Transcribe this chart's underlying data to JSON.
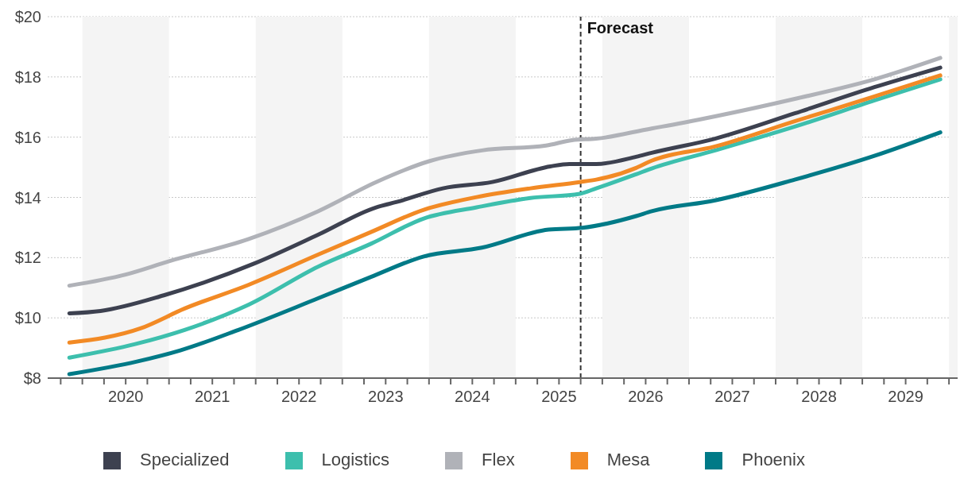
{
  "chart_data": {
    "type": "line",
    "xlim": [
      2019.6,
      2030.1
    ],
    "xticks": [
      {
        "value": 2019.75,
        "label": null
      },
      {
        "value": 2020,
        "label": null
      },
      {
        "value": 2020.25,
        "label": null
      },
      {
        "value": 2020.5,
        "label": "2020"
      },
      {
        "value": 2020.75,
        "label": null
      },
      {
        "value": 2021,
        "label": null
      },
      {
        "value": 2021.25,
        "label": null
      },
      {
        "value": 2021.5,
        "label": "2021"
      },
      {
        "value": 2021.75,
        "label": null
      },
      {
        "value": 2022,
        "label": null
      },
      {
        "value": 2022.25,
        "label": null
      },
      {
        "value": 2022.5,
        "label": "2022"
      },
      {
        "value": 2022.75,
        "label": null
      },
      {
        "value": 2023,
        "label": null
      },
      {
        "value": 2023.25,
        "label": null
      },
      {
        "value": 2023.5,
        "label": "2023"
      },
      {
        "value": 2023.75,
        "label": null
      },
      {
        "value": 2024,
        "label": null
      },
      {
        "value": 2024.25,
        "label": null
      },
      {
        "value": 2024.5,
        "label": "2024"
      },
      {
        "value": 2024.75,
        "label": null
      },
      {
        "value": 2025,
        "label": null
      },
      {
        "value": 2025.25,
        "label": null
      },
      {
        "value": 2025.5,
        "label": "2025"
      },
      {
        "value": 2025.75,
        "label": null
      },
      {
        "value": 2026,
        "label": null
      },
      {
        "value": 2026.25,
        "label": null
      },
      {
        "value": 2026.5,
        "label": "2026"
      },
      {
        "value": 2026.75,
        "label": null
      },
      {
        "value": 2027,
        "label": null
      },
      {
        "value": 2027.25,
        "label": null
      },
      {
        "value": 2027.5,
        "label": "2027"
      },
      {
        "value": 2027.75,
        "label": null
      },
      {
        "value": 2028,
        "label": null
      },
      {
        "value": 2028.25,
        "label": null
      },
      {
        "value": 2028.5,
        "label": "2028"
      },
      {
        "value": 2028.75,
        "label": null
      },
      {
        "value": 2029,
        "label": null
      },
      {
        "value": 2029.25,
        "label": null
      },
      {
        "value": 2029.5,
        "label": "2029"
      },
      {
        "value": 2029.75,
        "label": null
      },
      {
        "value": 2030,
        "label": null
      }
    ],
    "ylim": [
      8,
      20
    ],
    "yticks": [
      {
        "value": 8,
        "label": "$8"
      },
      {
        "value": 10,
        "label": "$10"
      },
      {
        "value": 12,
        "label": "$12"
      },
      {
        "value": 14,
        "label": "$14"
      },
      {
        "value": 16,
        "label": "$16"
      },
      {
        "value": 18,
        "label": "$18"
      },
      {
        "value": 20,
        "label": "$20"
      }
    ],
    "grid": "y",
    "legend": "bottom",
    "marker": "none",
    "line_style": "solid",
    "bands": [
      {
        "axis": "x",
        "from": 2020,
        "to": 2021,
        "color": "#f4f4f4"
      },
      {
        "axis": "x",
        "from": 2022,
        "to": 2023,
        "color": "#f4f4f4"
      },
      {
        "axis": "x",
        "from": 2024,
        "to": 2025,
        "color": "#f4f4f4"
      },
      {
        "axis": "x",
        "from": 2026,
        "to": 2027,
        "color": "#f4f4f4"
      },
      {
        "axis": "x",
        "from": 2028,
        "to": 2029,
        "color": "#f4f4f4"
      },
      {
        "axis": "x",
        "from": 2030,
        "to": 2030.1,
        "color": "#f4f4f4"
      }
    ],
    "ref_lines": [
      {
        "axis": "x",
        "value": 2025.75,
        "label": "Forecast",
        "color": "#333333",
        "line_style": "dashed"
      }
    ],
    "series": [
      {
        "name": "Specialized",
        "color": "#3d4150",
        "x": [
          2019.85,
          2020.21,
          2020.94,
          2021.98,
          2022.72,
          2023.39,
          2023.63,
          2024.16,
          2024.73,
          2025.4,
          2025.62,
          2025.93,
          2026.39,
          2026.57,
          2027.3,
          2028.22,
          2029.14,
          2029.9
        ],
        "values": [
          10.15,
          10.23,
          10.75,
          11.8,
          12.76,
          13.67,
          13.85,
          14.3,
          14.51,
          15.03,
          15.11,
          15.11,
          15.35,
          15.48,
          15.95,
          16.79,
          17.66,
          18.31
        ]
      },
      {
        "name": "Logistics",
        "color": "#3dbfad",
        "x": [
          2019.85,
          2020.61,
          2021.18,
          2021.92,
          2022.72,
          2023.33,
          2023.94,
          2024.55,
          2025.17,
          2025.74,
          2025.93,
          2026.39,
          2026.57,
          2027.3,
          2028.22,
          2029.14,
          2029.9
        ],
        "values": [
          8.68,
          9.13,
          9.6,
          10.44,
          11.7,
          12.46,
          13.3,
          13.67,
          13.98,
          14.12,
          14.3,
          14.77,
          14.96,
          15.56,
          16.35,
          17.22,
          17.92
        ]
      },
      {
        "name": "Flex",
        "color": "#b0b2b8",
        "x": [
          2019.85,
          2020.5,
          2021.0,
          2021.92,
          2022.72,
          2023.39,
          2024.0,
          2024.61,
          2025.35,
          2025.65,
          2025.93,
          2026.57,
          2026.69,
          2027.3,
          2028.22,
          2029.14,
          2029.9
        ],
        "values": [
          11.07,
          11.44,
          11.88,
          12.62,
          13.54,
          14.51,
          15.2,
          15.56,
          15.72,
          15.9,
          15.95,
          16.29,
          16.35,
          16.69,
          17.27,
          17.92,
          18.63
        ]
      },
      {
        "name": "Mesa",
        "color": "#f28a25",
        "x": [
          2019.85,
          2020.67,
          2021.18,
          2021.92,
          2022.72,
          2023.33,
          2023.94,
          2024.55,
          2025.17,
          2025.74,
          2025.93,
          2026.39,
          2026.57,
          2027.3,
          2028.22,
          2029.14,
          2029.9
        ],
        "values": [
          9.18,
          9.65,
          10.31,
          11.1,
          12.1,
          12.85,
          13.59,
          14.01,
          14.3,
          14.51,
          14.59,
          14.98,
          15.22,
          15.69,
          16.53,
          17.35,
          18.05
        ]
      },
      {
        "name": "Phoenix",
        "color": "#007a87",
        "x": [
          2019.85,
          2020.63,
          2021.13,
          2021.8,
          2022.72,
          2023.33,
          2023.94,
          2024.61,
          2025.38,
          2025.77,
          2026.39,
          2026.57,
          2027.3,
          2028.22,
          2029.14,
          2029.9
        ],
        "values": [
          8.13,
          8.55,
          8.92,
          9.6,
          10.65,
          11.36,
          12.04,
          12.33,
          12.93,
          12.99,
          13.38,
          13.54,
          13.9,
          14.59,
          15.38,
          16.16
        ]
      }
    ]
  }
}
